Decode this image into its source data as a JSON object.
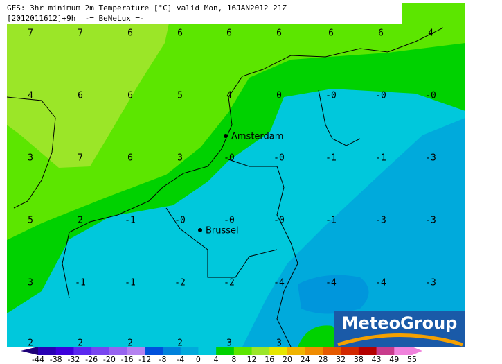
{
  "header": {
    "line1": "GFS: 3hr minimum 2m Temperature [°C] valid Mon, 16JAN2012 21Z",
    "line2": "[2012011612]+9h  -= BeNeLux =-"
  },
  "grid": {
    "rows": [
      [
        "7",
        "7",
        "6",
        "6",
        "6",
        "6",
        "6",
        "6",
        "4"
      ],
      [
        "4",
        "6",
        "6",
        "5",
        "4",
        "0",
        "-0",
        "-0",
        "-0"
      ],
      [
        "3",
        "7",
        "6",
        "3",
        "-0",
        "-0",
        "-1",
        "-1",
        "-3"
      ],
      [
        "5",
        "2",
        "-1",
        "-0",
        "-0",
        "-0",
        "-1",
        "-3",
        "-3"
      ],
      [
        "3",
        "-1",
        "-1",
        "-2",
        "-2",
        "-4",
        "-4",
        "-4",
        "-3"
      ],
      [
        "2",
        "2",
        "2",
        "2",
        "3",
        "3"
      ]
    ]
  },
  "cities": [
    "Amsterdam",
    "Brussel"
  ],
  "legend": {
    "labels": [
      "-44",
      "-38",
      "-32",
      "-26",
      "-20",
      "-16",
      "-12",
      "-8",
      "-4",
      "0",
      "4",
      "8",
      "12",
      "16",
      "20",
      "24",
      "28",
      "32",
      "38",
      "43",
      "49",
      "55"
    ]
  },
  "logo": "MeteoGroup"
}
